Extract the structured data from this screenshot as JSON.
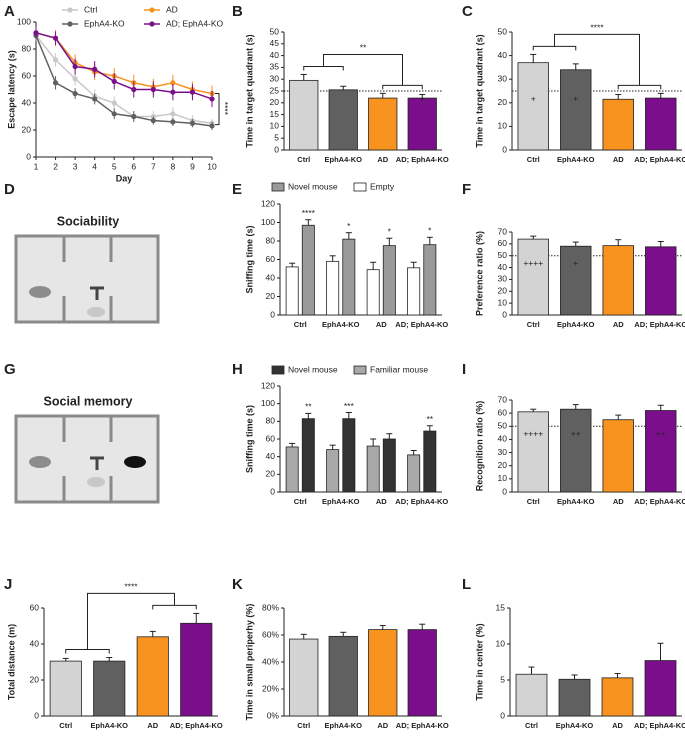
{
  "chart_data": [
    {
      "panel": "A",
      "type": "line",
      "x_label": "Day",
      "y_label": "Escape latency (s)",
      "x": [
        1,
        2,
        3,
        4,
        5,
        6,
        7,
        8,
        9,
        10
      ],
      "xlim": [
        1,
        10
      ],
      "xticks": [
        1,
        2,
        3,
        4,
        5,
        6,
        7,
        8,
        9,
        10
      ],
      "ylim": [
        0,
        100
      ],
      "yticks": [
        0,
        20,
        40,
        60,
        80,
        100
      ],
      "annotation": "****",
      "series": [
        {
          "name": "Ctrl",
          "color": "#c8c8c8",
          "values": [
            90,
            72,
            58,
            45,
            40,
            30,
            30,
            32,
            27,
            25
          ],
          "errors": [
            4,
            5,
            5,
            5,
            5,
            4,
            4,
            5,
            4,
            3
          ]
        },
        {
          "name": "AD",
          "color": "#f7931e",
          "values": [
            92,
            88,
            70,
            63,
            60,
            55,
            52,
            55,
            50,
            47
          ],
          "errors": [
            4,
            6,
            6,
            6,
            6,
            6,
            6,
            6,
            6,
            6
          ]
        },
        {
          "name": "EphA4-KO",
          "color": "#606060",
          "values": [
            90,
            55,
            47,
            43,
            32,
            30,
            27,
            26,
            25,
            23
          ],
          "errors": [
            4,
            5,
            4,
            4,
            4,
            4,
            3,
            3,
            3,
            3
          ]
        },
        {
          "name": "AD; EphA4-KO",
          "color": "#7b0e8a",
          "values": [
            92,
            88,
            67,
            65,
            56,
            50,
            50,
            48,
            48,
            43
          ],
          "errors": [
            4,
            5,
            6,
            6,
            6,
            6,
            6,
            6,
            6,
            6
          ]
        }
      ]
    },
    {
      "panel": "B",
      "type": "bar",
      "y_label": "Time in target quadrant (s)",
      "categories": [
        "Ctrl",
        "EphA4-KO",
        "AD",
        "AD; EphA4-KO"
      ],
      "colors": [
        "#d3d3d3",
        "#606060",
        "#f7931e",
        "#7b0e8a"
      ],
      "values": [
        29.5,
        25.5,
        22,
        22
      ],
      "errors": [
        2.5,
        1.5,
        2,
        1.5
      ],
      "ylim": [
        0,
        50
      ],
      "yticks": [
        0,
        5,
        10,
        15,
        20,
        25,
        30,
        35,
        40,
        45,
        50
      ],
      "reference_line": 25,
      "annotation": "**",
      "inner_labels": [
        null,
        null,
        null,
        "+"
      ]
    },
    {
      "panel": "C",
      "type": "bar",
      "y_label": "Time in target quadrant (s)",
      "categories": [
        "Ctrl",
        "EphA4-KO",
        "AD",
        "AD; EphA4-KO"
      ],
      "colors": [
        "#d3d3d3",
        "#606060",
        "#f7931e",
        "#7b0e8a"
      ],
      "values": [
        37,
        34,
        21.5,
        22
      ],
      "errors": [
        3.5,
        2.5,
        2,
        2
      ],
      "ylim": [
        0,
        50
      ],
      "yticks": [
        0,
        10,
        20,
        30,
        40,
        50
      ],
      "reference_line": 25,
      "annotation": "****",
      "inner_labels": [
        "+",
        "+",
        null,
        null
      ]
    },
    {
      "panel": "E",
      "type": "grouped-bar",
      "y_label": "Sniffing time (s)",
      "categories": [
        "Ctrl",
        "EphA4-KO",
        "AD",
        "AD; EphA4-KO"
      ],
      "ylim": [
        0,
        120
      ],
      "yticks": [
        0,
        20,
        40,
        60,
        80,
        100,
        120
      ],
      "series": [
        {
          "name": "Empty",
          "color": "#ffffff",
          "values": [
            52,
            58,
            49,
            51
          ],
          "errors": [
            4,
            6,
            8,
            6
          ]
        },
        {
          "name": "Novel mouse",
          "color": "#9a9a9a",
          "values": [
            97,
            82,
            75,
            76
          ],
          "errors": [
            6,
            7,
            8,
            8
          ]
        }
      ],
      "stars": [
        "****",
        "*",
        "*",
        "*"
      ]
    },
    {
      "panel": "F",
      "type": "bar",
      "y_label": "Preference ratio (%)",
      "categories": [
        "Ctrl",
        "EphA4-KO",
        "AD",
        "AD; EphA4-KO"
      ],
      "colors": [
        "#d3d3d3",
        "#606060",
        "#f7931e",
        "#7b0e8a"
      ],
      "values": [
        64,
        58,
        58.5,
        57.5
      ],
      "errors": [
        2.5,
        3.5,
        5,
        4.5
      ],
      "ylim": [
        0,
        70
      ],
      "yticks": [
        0,
        10,
        20,
        30,
        40,
        50,
        60,
        70
      ],
      "reference_line": 50,
      "inner_labels": [
        "++++",
        "+",
        null,
        null
      ]
    },
    {
      "panel": "H",
      "type": "grouped-bar",
      "y_label": "Sniffing time (s)",
      "categories": [
        "Ctrl",
        "EphA4-KO",
        "AD",
        "AD; EphA4-KO"
      ],
      "ylim": [
        0,
        120
      ],
      "yticks": [
        0,
        20,
        40,
        60,
        80,
        100,
        120
      ],
      "series": [
        {
          "name": "Familiar mouse",
          "color": "#a8a8a8",
          "values": [
            51,
            48,
            52,
            42
          ],
          "errors": [
            4,
            5,
            8,
            5
          ]
        },
        {
          "name": "Novel mouse",
          "color": "#333333",
          "values": [
            83,
            83,
            60,
            69
          ],
          "errors": [
            6,
            7,
            6,
            6
          ]
        }
      ],
      "stars": [
        "**",
        "***",
        null,
        "**"
      ]
    },
    {
      "panel": "I",
      "type": "bar",
      "y_label": "Recognition ratio (%)",
      "categories": [
        "Ctrl",
        "EphA4-KO",
        "AD",
        "AD; EphA4-KO"
      ],
      "colors": [
        "#d3d3d3",
        "#606060",
        "#f7931e",
        "#7b0e8a"
      ],
      "values": [
        61,
        63,
        55,
        62
      ],
      "errors": [
        2,
        3.5,
        3.5,
        4
      ],
      "ylim": [
        0,
        70
      ],
      "yticks": [
        0,
        10,
        20,
        30,
        40,
        50,
        60,
        70
      ],
      "reference_line": 50,
      "inner_labels": [
        "++++",
        "++",
        null,
        "++"
      ]
    },
    {
      "panel": "J",
      "type": "bar",
      "y_label": "Total distance (m)",
      "categories": [
        "Ctrl",
        "EphA4-KO",
        "AD",
        "AD; EphA4-KO"
      ],
      "colors": [
        "#d3d3d3",
        "#606060",
        "#f7931e",
        "#7b0e8a"
      ],
      "values": [
        30.5,
        30.5,
        44,
        51.5
      ],
      "errors": [
        1.5,
        2,
        3,
        5.5
      ],
      "ylim": [
        0,
        60
      ],
      "yticks": [
        0,
        20,
        40,
        60
      ],
      "annotation": "****"
    },
    {
      "panel": "K",
      "type": "bar",
      "y_label": "Time in small periperhy (%)",
      "categories": [
        "Ctrl",
        "EphA4-KO",
        "AD",
        "AD; EphA4-KO"
      ],
      "colors": [
        "#d3d3d3",
        "#606060",
        "#f7931e",
        "#7b0e8a"
      ],
      "values": [
        57,
        59,
        64,
        64
      ],
      "errors": [
        3.5,
        3,
        3,
        4
      ],
      "ylim": [
        0,
        80
      ],
      "yticks": [
        {
          "value": 0,
          "label": "0%"
        },
        {
          "value": 20,
          "label": "20%"
        },
        {
          "value": 40,
          "label": "40%"
        },
        {
          "value": 60,
          "label": "60%"
        },
        {
          "value": 80,
          "label": "80%"
        }
      ]
    },
    {
      "panel": "L",
      "type": "bar",
      "y_label": "Time in center (%)",
      "categories": [
        "Ctrl",
        "EphA4-KO",
        "AD",
        "AD; EphA4-KO"
      ],
      "colors": [
        "#d3d3d3",
        "#606060",
        "#f7931e",
        "#7b0e8a"
      ],
      "values": [
        5.8,
        5.1,
        5.3,
        7.7
      ],
      "errors": [
        1,
        0.6,
        0.6,
        2.4
      ],
      "ylim": [
        0,
        15
      ],
      "yticks": [
        0,
        5,
        10,
        15
      ]
    }
  ],
  "diagrams": [
    {
      "panel": "D",
      "title": "Sociability"
    },
    {
      "panel": "G",
      "title": "Social memory"
    }
  ]
}
